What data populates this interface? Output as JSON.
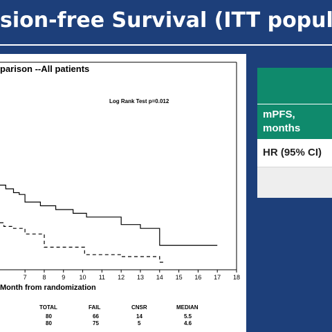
{
  "slide": {
    "title": "sion-free Survival (ITT popula",
    "colors": {
      "background": "#1d3f7a",
      "teal": "#0f8a6c"
    }
  },
  "chart_data": {
    "type": "line",
    "title": "parison --All patients",
    "annotation": "Log Rank Test p=0.012",
    "xlabel": "Month from randomization",
    "xticks": [
      "7",
      "8",
      "9",
      "10",
      "11",
      "12",
      "13",
      "14",
      "15",
      "16",
      "17",
      "18"
    ],
    "xlim": [
      5.7,
      18
    ],
    "ylim": [
      0,
      1
    ],
    "grid": false,
    "series": [
      {
        "style": "solid",
        "x": [
          5.7,
          6.0,
          6.0,
          6.4,
          6.4,
          6.7,
          6.7,
          7.0,
          7.0,
          7.8,
          7.8,
          8.6,
          8.6,
          9.5,
          9.5,
          10.2,
          10.2,
          12.0,
          12.0,
          13.0,
          13.0,
          14.0,
          14.0,
          17.0
        ],
        "y": [
          0.45,
          0.45,
          0.43,
          0.43,
          0.41,
          0.41,
          0.4,
          0.4,
          0.36,
          0.36,
          0.34,
          0.34,
          0.32,
          0.32,
          0.3,
          0.3,
          0.28,
          0.28,
          0.24,
          0.24,
          0.22,
          0.22,
          0.13,
          0.13
        ]
      },
      {
        "style": "dashed",
        "x": [
          5.7,
          5.9,
          5.9,
          6.4,
          6.4,
          7.0,
          7.0,
          8.0,
          8.0,
          10.1,
          10.1,
          12.0,
          12.0,
          14.0,
          14.0,
          14.2
        ],
        "y": [
          0.25,
          0.25,
          0.23,
          0.23,
          0.22,
          0.22,
          0.19,
          0.19,
          0.12,
          0.12,
          0.08,
          0.08,
          0.07,
          0.07,
          0.04,
          0.04
        ]
      }
    ],
    "risk_table": {
      "headers": [
        "TOTAL",
        "FAIL",
        "CNSR",
        "MEDIAN"
      ],
      "rows": [
        [
          "80",
          "66",
          "14",
          "5.5"
        ],
        [
          "80",
          "75",
          "5",
          "4.6"
        ]
      ]
    }
  },
  "side_table": {
    "rows": [
      "",
      "mPFS,\nmonths",
      "HR (95% CI)",
      ""
    ]
  }
}
